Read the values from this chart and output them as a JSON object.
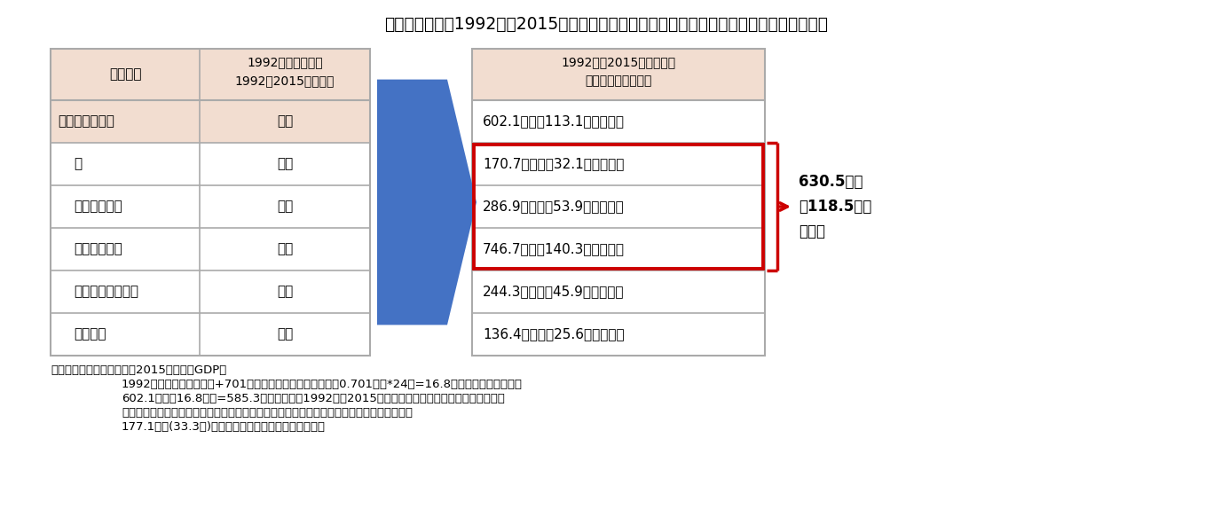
{
  "title": "（図表１１）　1992年－2015年における主要項目別基礎的財政収支の累積赤字への寄与額",
  "bg_color": "#ffffff",
  "table_header_bg": "#f2ddd0",
  "arrow_color": "#4472c4",
  "red_box_color": "#cc0000",
  "col1_header": "主要項目",
  "col2_header": "1992年と比較した\n1992－2015年の傾向",
  "col3_header": "1992年－2015年における\n累積赤字への寄与額",
  "rows": [
    {
      "item": "基礎的財政収支",
      "indent": 0,
      "trend": "悪化",
      "value": "602.1兆円（113.1％）の拡大",
      "in_red_box": false
    },
    {
      "item": "税",
      "indent": 1,
      "trend": "減少",
      "value": "170.7兆円　（32.1％）の拡大",
      "in_red_box": true
    },
    {
      "item": "社会保障負担",
      "indent": 1,
      "trend": "増加",
      "value": "286.9兆円　（53.9％）の縮小",
      "in_red_box": true
    },
    {
      "item": "社会保障給付",
      "indent": 1,
      "trend": "増加",
      "value": "746.7兆円（140.3％）の拡大",
      "in_red_box": true
    },
    {
      "item": "政府最終消費支出",
      "indent": 1,
      "trend": "増加",
      "value": "244.3兆円　（45.9％）の拡大",
      "in_red_box": false
    },
    {
      "item": "公共投資",
      "indent": 1,
      "trend": "減少",
      "value": "136.4兆円　（25.6％）の縮小",
      "in_red_box": false
    }
  ],
  "brace_label": "630.5兆円\n（118.5％）\nの拡大",
  "note_line1": "（注）（）内の％表示は対2015年度名目GDP比",
  "note_line2": "1992年の基礎的財政収支+701億円を基準としているため、0.701兆円*24年=16.8兆円がベースにある。",
  "note_line3": "602.1兆円－16.8兆円=585.3兆円が実際の1992年－2015年における基礎的財政収支赤字の合計。",
  "note_line4": "累積赤字への寄与額における基礎的財政収支と５項目合計の残差については固定資本減耗の",
  "note_line5": "177.1兆円(33.3％)が赤字縮小に寄与しているのが主因"
}
